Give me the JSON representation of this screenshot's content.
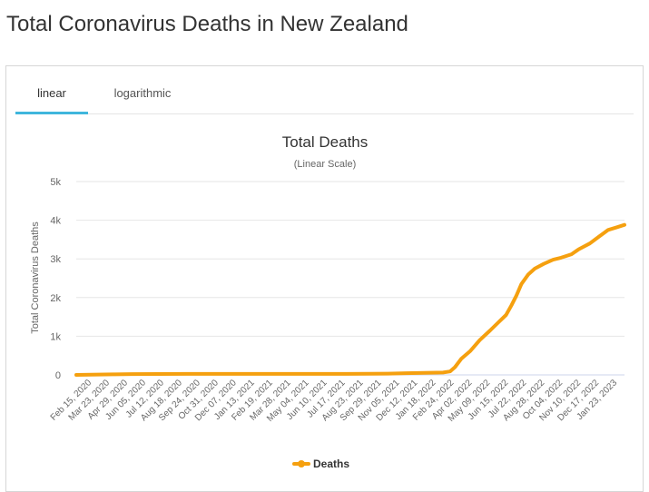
{
  "page": {
    "title": "Total Coronavirus Deaths in New Zealand"
  },
  "tabs": [
    {
      "label": "linear",
      "active": true
    },
    {
      "label": "logarithmic",
      "active": false
    }
  ],
  "colors": {
    "series": "#f5a00f",
    "tab_underline": "#3fb6dc",
    "grid": "#e6e6e6"
  },
  "chart_data": {
    "type": "line",
    "title": "Total Deaths",
    "subtitle": "(Linear Scale)",
    "xlabel": "",
    "ylabel": "Total Coronavirus Deaths",
    "ylim": [
      0,
      5000
    ],
    "yticks": [
      0,
      1000,
      2000,
      3000,
      4000,
      5000
    ],
    "ytick_labels": [
      "0",
      "1k",
      "2k",
      "3k",
      "4k",
      "5k"
    ],
    "grid": true,
    "legend": "bottom-center",
    "x_tick_labels": [
      "Feb 15, 2020",
      "Mar 23, 2020",
      "Apr 29, 2020",
      "Jun 05, 2020",
      "Jul 12, 2020",
      "Aug 18, 2020",
      "Sep 24, 2020",
      "Oct 31, 2020",
      "Dec 07, 2020",
      "Jan 13, 2021",
      "Feb 19, 2021",
      "Mar 28, 2021",
      "May 04, 2021",
      "Jun 10, 2021",
      "Jul 17, 2021",
      "Aug 23, 2021",
      "Sep 29, 2021",
      "Nov 05, 2021",
      "Dec 12, 2021",
      "Jan 18, 2022",
      "Feb 24, 2022",
      "Apr 02, 2022",
      "May 09, 2022",
      "Jun 15, 2022",
      "Jul 22, 2022",
      "Aug 28, 2022",
      "Oct 04, 2022",
      "Nov 10, 2022",
      "Dec 17, 2022",
      "Jan 23, 2023"
    ],
    "series": [
      {
        "name": "Deaths",
        "points": [
          [
            "2020-02-15",
            0
          ],
          [
            "2020-04-29",
            15
          ],
          [
            "2020-06-05",
            22
          ],
          [
            "2020-09-24",
            25
          ],
          [
            "2021-01-13",
            25
          ],
          [
            "2021-06-10",
            26
          ],
          [
            "2021-09-29",
            27
          ],
          [
            "2021-11-05",
            32
          ],
          [
            "2021-12-12",
            45
          ],
          [
            "2022-01-18",
            52
          ],
          [
            "2022-02-24",
            60
          ],
          [
            "2022-03-10",
            90
          ],
          [
            "2022-03-20",
            200
          ],
          [
            "2022-04-02",
            420
          ],
          [
            "2022-04-20",
            620
          ],
          [
            "2022-05-09",
            900
          ],
          [
            "2022-05-30",
            1150
          ],
          [
            "2022-06-15",
            1350
          ],
          [
            "2022-07-01",
            1550
          ],
          [
            "2022-07-12",
            1800
          ],
          [
            "2022-07-22",
            2050
          ],
          [
            "2022-08-01",
            2350
          ],
          [
            "2022-08-15",
            2600
          ],
          [
            "2022-08-28",
            2750
          ],
          [
            "2022-09-15",
            2870
          ],
          [
            "2022-10-04",
            2980
          ],
          [
            "2022-10-20",
            3030
          ],
          [
            "2022-11-10",
            3120
          ],
          [
            "2022-11-25",
            3250
          ],
          [
            "2022-12-17",
            3400
          ],
          [
            "2023-01-05",
            3580
          ],
          [
            "2023-01-23",
            3750
          ],
          [
            "2023-02-10",
            3820
          ],
          [
            "2023-02-25",
            3880
          ]
        ]
      }
    ]
  }
}
